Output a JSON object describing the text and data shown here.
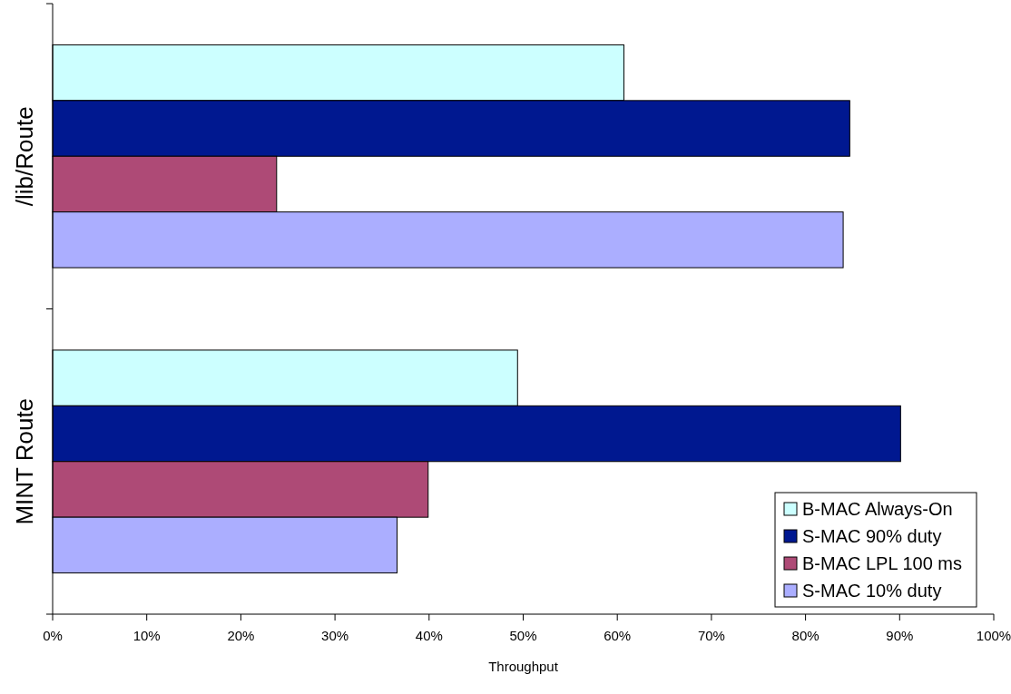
{
  "chart_data": {
    "type": "bar",
    "orientation": "horizontal",
    "xlabel": "Throughput",
    "categories": [
      "/lib/Route",
      "MINT Route"
    ],
    "series": [
      {
        "name": "B-MAC Always-On",
        "color": "#ccffff",
        "values": [
          60.7,
          49.4
        ]
      },
      {
        "name": "S-MAC 90% duty",
        "color": "#001890",
        "values": [
          84.7,
          90.1
        ]
      },
      {
        "name": "B-MAC LPL 100 ms",
        "color": "#ae4a76",
        "values": [
          23.8,
          39.9
        ]
      },
      {
        "name": "S-MAC 10% duty",
        "color": "#abaeff",
        "values": [
          84.0,
          36.6
        ]
      }
    ],
    "xlim": [
      0,
      100
    ],
    "xticks": [
      {
        "value": 0,
        "label": "0%"
      },
      {
        "value": 10,
        "label": "10%"
      },
      {
        "value": 20,
        "label": "20%"
      },
      {
        "value": 30,
        "label": "30%"
      },
      {
        "value": 40,
        "label": "40%"
      },
      {
        "value": 50,
        "label": "50%"
      },
      {
        "value": 60,
        "label": "60%"
      },
      {
        "value": 70,
        "label": "70%"
      },
      {
        "value": 80,
        "label": "80%"
      },
      {
        "value": 90,
        "label": "90%"
      },
      {
        "value": 100,
        "label": "100%"
      }
    ],
    "legend": "bottom right",
    "grid": false
  }
}
